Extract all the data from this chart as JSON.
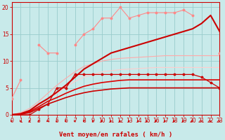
{
  "x": [
    0,
    1,
    2,
    3,
    4,
    5,
    6,
    7,
    8,
    9,
    10,
    11,
    12,
    13,
    14,
    15,
    16,
    17,
    18,
    19,
    20,
    21,
    22,
    23
  ],
  "series": [
    {
      "name": "jagged_light_pink",
      "color": "#ff8888",
      "lw": 0.8,
      "marker": "o",
      "ms": 1.8,
      "y": [
        3,
        6.5,
        null,
        13,
        11.5,
        11.5,
        null,
        13,
        15,
        16,
        18,
        18,
        20,
        18,
        18.5,
        19,
        19,
        19,
        19,
        19.5,
        18.5,
        null,
        null,
        11.5
      ]
    },
    {
      "name": "smooth_upper_light",
      "color": "#ffaaaa",
      "lw": 0.8,
      "marker": null,
      "ms": 0,
      "y": [
        0,
        0.4,
        1.2,
        2.5,
        4.0,
        5.5,
        6.8,
        8.0,
        9.0,
        9.5,
        10.0,
        10.3,
        10.5,
        10.6,
        10.7,
        10.8,
        10.9,
        11.0,
        11.0,
        11.0,
        11.0,
        11.0,
        11.0,
        11.0
      ]
    },
    {
      "name": "smooth_mid_light",
      "color": "#ffcccc",
      "lw": 0.8,
      "marker": null,
      "ms": 0,
      "y": [
        0,
        0.2,
        0.8,
        1.8,
        3.0,
        4.0,
        5.2,
        6.2,
        7.0,
        7.5,
        8.0,
        8.2,
        8.4,
        8.5,
        8.6,
        8.7,
        8.8,
        8.8,
        8.8,
        8.8,
        8.8,
        8.8,
        8.8,
        8.8
      ]
    },
    {
      "name": "flat_dotted_dark",
      "color": "#cc0000",
      "lw": 0.9,
      "marker": "o",
      "ms": 1.8,
      "y": [
        0,
        0,
        0,
        1.0,
        2.0,
        5.0,
        5.0,
        7.5,
        7.5,
        7.5,
        7.5,
        7.5,
        7.5,
        7.5,
        7.5,
        7.5,
        7.5,
        7.5,
        7.5,
        7.5,
        7.5,
        7.0,
        6.0,
        5.0
      ]
    },
    {
      "name": "curve_low_dark",
      "color": "#cc0000",
      "lw": 1.2,
      "marker": null,
      "ms": 0,
      "y": [
        0,
        0.1,
        0.4,
        1.2,
        2.0,
        2.6,
        3.2,
        3.7,
        4.1,
        4.4,
        4.6,
        4.8,
        4.9,
        5.0,
        5.0,
        5.0,
        5.0,
        5.0,
        5.0,
        5.0,
        5.0,
        5.0,
        5.0,
        5.0
      ]
    },
    {
      "name": "curve_mid_dark",
      "color": "#dd0000",
      "lw": 1.2,
      "marker": null,
      "ms": 0,
      "y": [
        0,
        0.15,
        0.6,
        1.5,
        2.5,
        3.2,
        4.0,
        4.7,
        5.3,
        5.7,
        6.0,
        6.2,
        6.4,
        6.5,
        6.5,
        6.5,
        6.5,
        6.5,
        6.5,
        6.5,
        6.5,
        6.5,
        6.5,
        6.5
      ]
    },
    {
      "name": "curve_upper_dark",
      "color": "#cc0000",
      "lw": 1.5,
      "marker": null,
      "ms": 0,
      "y": [
        0,
        0.2,
        0.8,
        2.0,
        3.0,
        4.2,
        5.5,
        7.0,
        8.5,
        9.5,
        10.5,
        11.5,
        12.0,
        12.5,
        13.0,
        13.5,
        14.0,
        14.5,
        15.0,
        15.5,
        16.0,
        17.0,
        18.5,
        15.5
      ]
    }
  ],
  "xlim": [
    0,
    23
  ],
  "ylim": [
    0,
    21
  ],
  "yticks": [
    0,
    5,
    10,
    15,
    20
  ],
  "xticks": [
    0,
    1,
    2,
    3,
    4,
    5,
    6,
    7,
    8,
    9,
    10,
    11,
    12,
    13,
    14,
    15,
    16,
    17,
    18,
    19,
    20,
    21,
    22,
    23
  ],
  "xlabel": "Vent moyen/en rafales ( km/h )",
  "xlabel_color": "#cc0000",
  "xlabel_fontsize": 6.5,
  "tick_color": "#cc0000",
  "tick_fontsize": 5.5,
  "grid_color": "#99cccc",
  "bg_color": "#c8eaea",
  "spine_color": "#cc0000",
  "arrow_color": "#cc0000"
}
